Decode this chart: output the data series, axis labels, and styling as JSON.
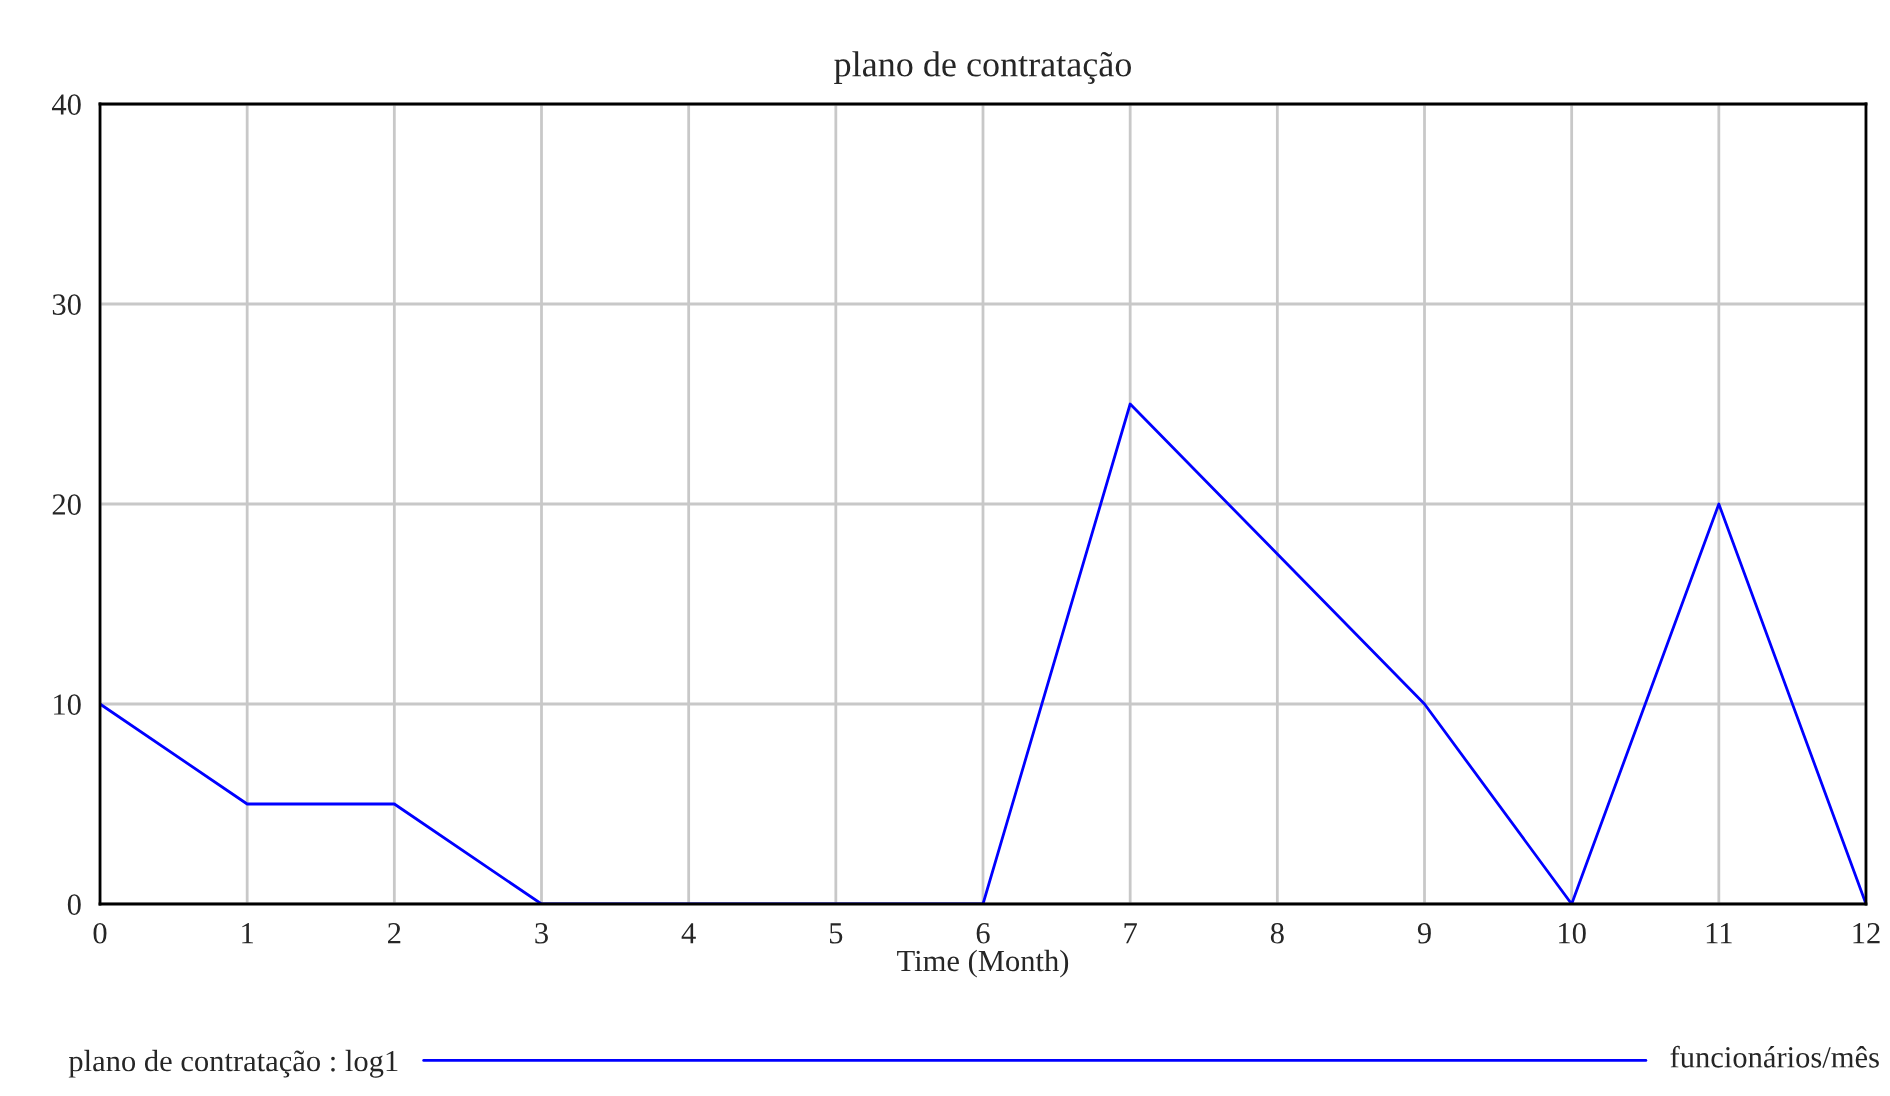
{
  "chart_data": {
    "type": "line",
    "title": "plano de contratação",
    "xlabel": "Time (Month)",
    "x": [
      0,
      1,
      2,
      3,
      4,
      5,
      6,
      7,
      8,
      9,
      10,
      11,
      12
    ],
    "series": [
      {
        "name": "plano de contratação : log1",
        "color": "#0000ff",
        "values": [
          10,
          5,
          5,
          0,
          0,
          0,
          0,
          25,
          17.5,
          10,
          0,
          20,
          0
        ]
      }
    ],
    "xlim": [
      0,
      12
    ],
    "xticks": [
      0,
      1,
      2,
      3,
      4,
      5,
      6,
      7,
      8,
      9,
      10,
      11,
      12
    ],
    "ylim": [
      0,
      40
    ],
    "yticks": [
      0,
      10,
      20,
      30,
      40
    ],
    "grid": true,
    "legend": "bottom",
    "marker": "none",
    "line_style": "solid",
    "annotations": [
      "funcionários/mês"
    ]
  }
}
